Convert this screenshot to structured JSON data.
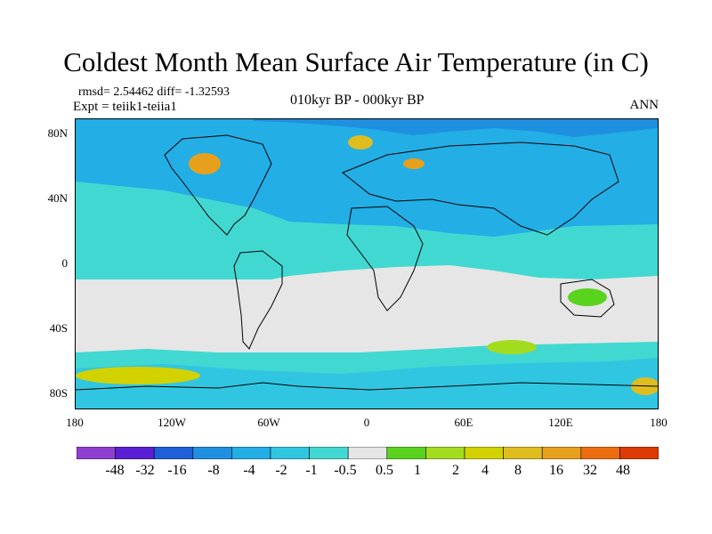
{
  "title": "Coldest Month Mean Surface Air Temperature (in C)",
  "stats": "rmsd= 2.54462 diff= -1.32593",
  "experiment": "Expt = teiik1-teiia1",
  "period": "010kyr BP - 000kyr BP",
  "season": "ANN",
  "map": {
    "lon_range": [
      -180,
      180
    ],
    "lat_range": [
      -90,
      90
    ],
    "x_ticks": [
      {
        "lon": -180,
        "label": "180"
      },
      {
        "lon": -120,
        "label": "120W"
      },
      {
        "lon": -60,
        "label": "60W"
      },
      {
        "lon": 0,
        "label": "0"
      },
      {
        "lon": 60,
        "label": "60E"
      },
      {
        "lon": 120,
        "label": "120E"
      },
      {
        "lon": 180,
        "label": "180"
      }
    ],
    "y_ticks": [
      {
        "lat": 80,
        "label": "80N"
      },
      {
        "lat": 40,
        "label": "40N"
      },
      {
        "lat": 0,
        "label": "0"
      },
      {
        "lat": -40,
        "label": "40S"
      },
      {
        "lat": -80,
        "label": "80S"
      }
    ]
  },
  "colorbar": {
    "colors": [
      "#8f3fd0",
      "#5a1fd3",
      "#1f5fd8",
      "#1f90e0",
      "#23aee6",
      "#30c6e2",
      "#42d8d2",
      "#e6e6e6",
      "#5ad31f",
      "#a3dc1f",
      "#d2d200",
      "#dfbd1f",
      "#e7a01c",
      "#ec6d10",
      "#dd3a05"
    ],
    "labels": [
      "-48",
      "-32",
      "-16",
      "-8",
      "-4",
      "-2",
      "-1",
      "-0.5",
      "0.5",
      "1",
      "2",
      "4",
      "8",
      "16",
      "32",
      "48"
    ]
  }
}
